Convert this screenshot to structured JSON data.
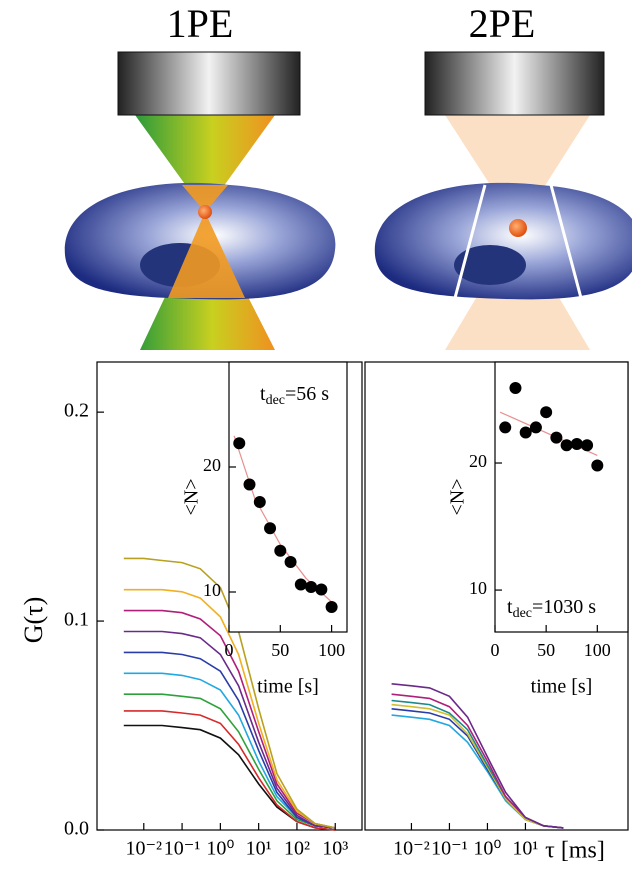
{
  "illustration": {
    "left_label": "1PE",
    "right_label": "2PE"
  },
  "chart_data": [
    {
      "type": "line",
      "ylabel": "G(τ)",
      "log_x": true,
      "xlim": [
        0.0006,
        5000
      ],
      "ylim": [
        0,
        0.224
      ],
      "xticks": [
        {
          "value": 0.01,
          "label": "10⁻²"
        },
        {
          "value": 0.1,
          "label": "10⁻¹"
        },
        {
          "value": 1,
          "label": "10⁰"
        },
        {
          "value": 10,
          "label": "10¹"
        },
        {
          "value": 100,
          "label": "10²"
        },
        {
          "value": 1000,
          "label": "10³"
        }
      ],
      "yticks": [
        {
          "value": 0,
          "label": "0.0"
        },
        0.1,
        0.2
      ],
      "x": [
        0.003,
        0.01,
        0.03,
        0.1,
        0.3,
        1,
        3,
        10,
        30,
        100,
        300,
        1000
      ],
      "series": [
        {
          "color": "#111111",
          "values": [
            0.05,
            0.05,
            0.05,
            0.049,
            0.048,
            0.044,
            0.036,
            0.022,
            0.011,
            0.004,
            0.001,
            0
          ]
        },
        {
          "color": "#d62a2a",
          "values": [
            0.057,
            0.057,
            0.057,
            0.056,
            0.055,
            0.051,
            0.041,
            0.025,
            0.012,
            0.004,
            0.001,
            0
          ]
        },
        {
          "color": "#2ea23a",
          "values": [
            0.065,
            0.065,
            0.065,
            0.064,
            0.063,
            0.058,
            0.047,
            0.029,
            0.014,
            0.005,
            0.002,
            0.001
          ]
        },
        {
          "color": "#22a8e0",
          "values": [
            0.075,
            0.075,
            0.075,
            0.074,
            0.072,
            0.067,
            0.055,
            0.033,
            0.016,
            0.006,
            0.002,
            0.001
          ]
        },
        {
          "color": "#2a3ca8",
          "values": [
            0.085,
            0.085,
            0.085,
            0.084,
            0.082,
            0.076,
            0.062,
            0.038,
            0.018,
            0.006,
            0.002,
            0.001
          ]
        },
        {
          "color": "#6a2a8a",
          "values": [
            0.095,
            0.095,
            0.095,
            0.094,
            0.092,
            0.084,
            0.069,
            0.042,
            0.02,
            0.007,
            0.002,
            0.001
          ]
        },
        {
          "color": "#b0207a",
          "values": [
            0.105,
            0.105,
            0.105,
            0.104,
            0.101,
            0.093,
            0.076,
            0.047,
            0.022,
            0.008,
            0.003,
            0.001
          ]
        },
        {
          "color": "#f0b020",
          "values": [
            0.115,
            0.115,
            0.115,
            0.114,
            0.111,
            0.102,
            0.084,
            0.051,
            0.024,
            0.009,
            0.003,
            0.001
          ]
        },
        {
          "color": "#b8a020",
          "values": [
            0.13,
            0.13,
            0.129,
            0.128,
            0.125,
            0.116,
            0.095,
            0.058,
            0.027,
            0.01,
            0.003,
            0.001
          ]
        }
      ]
    },
    {
      "type": "line",
      "xlabel": "τ [ms]",
      "log_x": true,
      "xlim": [
        0.0006,
        5000
      ],
      "ylim": [
        0,
        0.224
      ],
      "xticks": [
        {
          "value": 0.01,
          "label": "10⁻²"
        },
        {
          "value": 0.1,
          "label": "10⁻¹"
        },
        {
          "value": 1,
          "label": "10⁰"
        },
        {
          "value": 10,
          "label": "10¹"
        }
      ],
      "x": [
        0.003,
        0.01,
        0.03,
        0.1,
        0.3,
        1,
        3,
        10,
        30,
        100
      ],
      "series": [
        {
          "color": "#22a8e0",
          "values": [
            0.055,
            0.054,
            0.053,
            0.05,
            0.042,
            0.028,
            0.014,
            0.005,
            0.002,
            0.001
          ]
        },
        {
          "color": "#2a3ca8",
          "values": [
            0.058,
            0.057,
            0.056,
            0.053,
            0.045,
            0.029,
            0.015,
            0.005,
            0.002,
            0.001
          ]
        },
        {
          "color": "#d0c030",
          "values": [
            0.06,
            0.059,
            0.058,
            0.055,
            0.046,
            0.03,
            0.015,
            0.005,
            0.002,
            0.001
          ]
        },
        {
          "color": "#1a8a8a",
          "values": [
            0.062,
            0.061,
            0.06,
            0.056,
            0.048,
            0.031,
            0.016,
            0.006,
            0.002,
            0.001
          ]
        },
        {
          "color": "#b0207a",
          "values": [
            0.065,
            0.064,
            0.063,
            0.059,
            0.05,
            0.033,
            0.016,
            0.006,
            0.002,
            0.001
          ]
        },
        {
          "color": "#6a2a8a",
          "values": [
            0.07,
            0.069,
            0.068,
            0.064,
            0.054,
            0.035,
            0.018,
            0.006,
            0.002,
            0.001
          ]
        }
      ]
    },
    {
      "type": "scatter",
      "xlabel": "time [s]",
      "ylabel": "<N>",
      "annotation": [
        "t",
        "dec",
        "=56 s"
      ],
      "xlim": [
        0,
        115
      ],
      "ylim": [
        6.8,
        28.4
      ],
      "xticks": [
        0,
        50,
        100
      ],
      "yticks": [
        10,
        20
      ],
      "x": [
        10,
        20,
        30,
        40,
        50,
        60,
        70,
        80,
        90,
        100
      ],
      "values": [
        21.9,
        18.6,
        17.2,
        15.1,
        13.3,
        12.4,
        10.6,
        10.4,
        10.2,
        8.8
      ],
      "color": "#000000",
      "fit": {
        "x": [
          5,
          25,
          50,
          75,
          100
        ],
        "values": [
          22.5,
          17.5,
          13.8,
          11.1,
          9.2
        ],
        "color": "#e89090"
      }
    },
    {
      "type": "scatter",
      "xlabel": "time [s]",
      "ylabel": "<N>",
      "annotation": [
        "t",
        "dec",
        "=1030 s"
      ],
      "xlim": [
        0,
        130
      ],
      "ylim": [
        6.7,
        27.95
      ],
      "xticks": [
        0,
        50,
        100
      ],
      "yticks": [
        10,
        20
      ],
      "x": [
        10,
        20,
        30,
        40,
        50,
        60,
        70,
        80,
        90,
        100
      ],
      "values": [
        22.8,
        25.9,
        22.4,
        22.8,
        24.0,
        22.0,
        21.4,
        21.5,
        21.4,
        19.8
      ],
      "color": "#000000",
      "fit": {
        "x": [
          5,
          100
        ],
        "values": [
          24.0,
          20.6
        ],
        "color": "#e89090"
      }
    }
  ]
}
